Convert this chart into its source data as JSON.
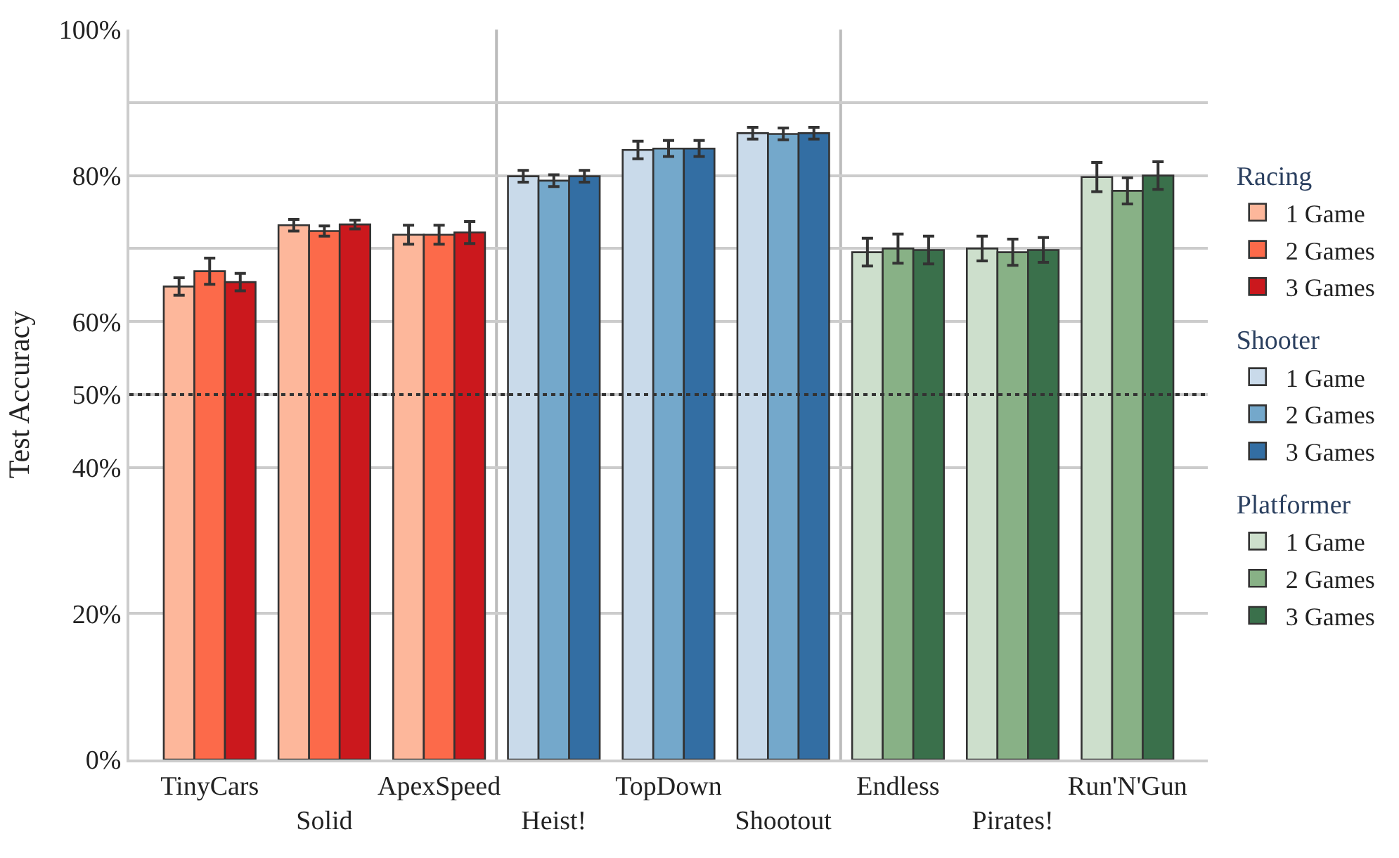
{
  "chart_data": {
    "type": "bar",
    "ylabel": "Test Accuracy",
    "categories": [
      "TinyCars",
      "Solid",
      "ApexSpeed",
      "Heist!",
      "TopDown",
      "Shootout",
      "Endless",
      "Pirates!",
      "Run'N'Gun"
    ],
    "legend_title": [
      "Racing",
      "Shooter",
      "Platformer"
    ],
    "series": [
      {
        "name": "1 Game",
        "color": "#fdb79b",
        "values": [
          64.8,
          73.2,
          71.9,
          null,
          null,
          null,
          null,
          null,
          null
        ],
        "errors": [
          1.2,
          0.8,
          1.3,
          null,
          null,
          null,
          null,
          null,
          null
        ]
      },
      {
        "name": "2 Games",
        "color": "#fc6a4a",
        "values": [
          66.9,
          72.4,
          71.9,
          null,
          null,
          null,
          null,
          null,
          null
        ],
        "errors": [
          1.8,
          0.7,
          1.3,
          null,
          null,
          null,
          null,
          null,
          null
        ]
      },
      {
        "name": "3 Games",
        "color": "#cb181d",
        "values": [
          65.4,
          73.3,
          72.2,
          null,
          null,
          null,
          null,
          null,
          null
        ],
        "errors": [
          1.2,
          0.6,
          1.5,
          null,
          null,
          null,
          null,
          null,
          null
        ]
      },
      {
        "name": "1 Game",
        "color": "#c9daea",
        "values": [
          null,
          null,
          null,
          79.9,
          83.5,
          85.8,
          null,
          null,
          null
        ],
        "errors": [
          null,
          null,
          null,
          0.8,
          1.2,
          0.8,
          null,
          null,
          null
        ]
      },
      {
        "name": "2 Games",
        "color": "#74a8cb",
        "values": [
          null,
          null,
          null,
          79.3,
          83.7,
          85.7,
          null,
          null,
          null
        ],
        "errors": [
          null,
          null,
          null,
          0.8,
          1.1,
          0.8,
          null,
          null,
          null
        ]
      },
      {
        "name": "3 Games",
        "color": "#336ea3",
        "values": [
          null,
          null,
          null,
          79.9,
          83.7,
          85.8,
          null,
          null,
          null
        ],
        "errors": [
          null,
          null,
          null,
          0.8,
          1.1,
          0.8,
          null,
          null,
          null
        ]
      },
      {
        "name": "1 Game",
        "color": "#cddfcc",
        "values": [
          null,
          null,
          null,
          null,
          null,
          null,
          69.5,
          70.0,
          79.8
        ],
        "errors": [
          null,
          null,
          null,
          null,
          null,
          null,
          1.9,
          1.7,
          2.0
        ]
      },
      {
        "name": "2 Games",
        "color": "#88b186",
        "values": [
          null,
          null,
          null,
          null,
          null,
          null,
          70.0,
          69.5,
          77.9
        ],
        "errors": [
          null,
          null,
          null,
          null,
          null,
          null,
          2.0,
          1.8,
          1.8
        ]
      },
      {
        "name": "3 Games",
        "color": "#3a704b",
        "values": [
          null,
          null,
          null,
          null,
          null,
          null,
          69.8,
          69.8,
          80.0
        ],
        "errors": [
          null,
          null,
          null,
          null,
          null,
          null,
          1.9,
          1.7,
          1.9
        ]
      }
    ],
    "ylim": [
      0,
      100
    ],
    "yticks": [
      {
        "value": 0,
        "label": "0%"
      },
      {
        "value": 20,
        "label": "20%"
      },
      {
        "value": 40,
        "label": "40%"
      },
      {
        "value": 50,
        "label": "50%"
      },
      {
        "value": 60,
        "label": "60%"
      },
      {
        "value": 70,
        "label": null
      },
      {
        "value": 80,
        "label": "80%"
      },
      {
        "value": 90,
        "label": null
      },
      {
        "value": 100,
        "label": "100%"
      }
    ],
    "ref_lines": [
      {
        "axis": "y",
        "value": 50,
        "color": "#333333",
        "line_style": "dotted"
      }
    ],
    "grid": "y",
    "legend": "right"
  }
}
